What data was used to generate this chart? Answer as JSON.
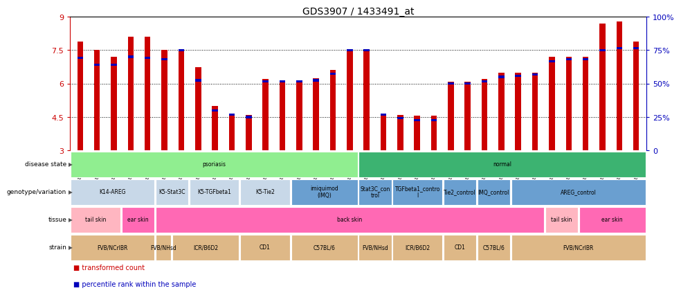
{
  "title": "GDS3907 / 1433491_at",
  "samples": [
    "GSM684694",
    "GSM684695",
    "GSM684696",
    "GSM684688",
    "GSM684689",
    "GSM684690",
    "GSM684700",
    "GSM684701",
    "GSM684704",
    "GSM684705",
    "GSM684706",
    "GSM684676",
    "GSM684677",
    "GSM684678",
    "GSM684682",
    "GSM684683",
    "GSM684684",
    "GSM684702",
    "GSM684703",
    "GSM684707",
    "GSM684708",
    "GSM684709",
    "GSM684679",
    "GSM684680",
    "GSM684681",
    "GSM684685",
    "GSM684686",
    "GSM684687",
    "GSM684697",
    "GSM684698",
    "GSM684699",
    "GSM684691",
    "GSM684692",
    "GSM684693"
  ],
  "red_values": [
    7.9,
    7.5,
    7.2,
    8.1,
    8.1,
    7.5,
    7.55,
    6.75,
    5.0,
    4.65,
    4.6,
    6.2,
    6.15,
    6.15,
    6.25,
    6.6,
    7.55,
    7.5,
    4.65,
    4.6,
    4.55,
    4.55,
    6.1,
    6.1,
    6.2,
    6.5,
    6.5,
    6.5,
    7.2,
    7.2,
    7.2,
    8.7,
    8.8,
    7.9
  ],
  "blue_values": [
    7.15,
    6.85,
    6.85,
    7.2,
    7.15,
    7.1,
    7.5,
    6.15,
    4.8,
    4.6,
    4.5,
    6.1,
    6.1,
    6.1,
    6.15,
    6.45,
    7.5,
    7.5,
    4.6,
    4.45,
    4.35,
    4.35,
    6.0,
    6.0,
    6.1,
    6.3,
    6.35,
    6.4,
    7.0,
    7.1,
    7.1,
    7.5,
    7.6,
    7.6
  ],
  "ylim": [
    3,
    9
  ],
  "yticks": [
    3,
    4.5,
    6,
    7.5,
    9
  ],
  "right_ylabels": [
    "0",
    "25%",
    "50%",
    "75%",
    "100%"
  ],
  "gridlines": [
    4.5,
    6.0,
    7.5
  ],
  "bar_color": "#CC0000",
  "blue_color": "#0000BB",
  "axis_color_left": "#CC0000",
  "axis_color_right": "#0000BB",
  "annotation_rows": [
    {
      "label": "disease state",
      "segments": [
        {
          "start": 0,
          "end": 17,
          "text": "psoriasis",
          "color": "#90EE90"
        },
        {
          "start": 17,
          "end": 34,
          "text": "normal",
          "color": "#3CB371"
        }
      ]
    },
    {
      "label": "genotype/variation",
      "segments": [
        {
          "start": 0,
          "end": 5,
          "text": "K14-AREG",
          "color": "#C8D8E8"
        },
        {
          "start": 5,
          "end": 7,
          "text": "K5-Stat3C",
          "color": "#C8D8E8"
        },
        {
          "start": 7,
          "end": 10,
          "text": "K5-TGFbeta1",
          "color": "#C8D8E8"
        },
        {
          "start": 10,
          "end": 13,
          "text": "K5-Tie2",
          "color": "#C8D8E8"
        },
        {
          "start": 13,
          "end": 17,
          "text": "imiquimod\n(IMQ)",
          "color": "#6A9FD0"
        },
        {
          "start": 17,
          "end": 19,
          "text": "Stat3C_con\ntrol",
          "color": "#6A9FD0"
        },
        {
          "start": 19,
          "end": 22,
          "text": "TGFbeta1_contro\nl",
          "color": "#6A9FD0"
        },
        {
          "start": 22,
          "end": 24,
          "text": "Tie2_control",
          "color": "#6A9FD0"
        },
        {
          "start": 24,
          "end": 26,
          "text": "IMQ_control",
          "color": "#6A9FD0"
        },
        {
          "start": 26,
          "end": 34,
          "text": "AREG_control",
          "color": "#6A9FD0"
        }
      ]
    },
    {
      "label": "tissue",
      "segments": [
        {
          "start": 0,
          "end": 3,
          "text": "tail skin",
          "color": "#FFB6C1"
        },
        {
          "start": 3,
          "end": 5,
          "text": "ear skin",
          "color": "#FF69B4"
        },
        {
          "start": 5,
          "end": 28,
          "text": "back skin",
          "color": "#FF69B4"
        },
        {
          "start": 28,
          "end": 30,
          "text": "tail skin",
          "color": "#FFB6C1"
        },
        {
          "start": 30,
          "end": 34,
          "text": "ear skin",
          "color": "#FF69B4"
        }
      ]
    },
    {
      "label": "strain",
      "segments": [
        {
          "start": 0,
          "end": 5,
          "text": "FVB/NCrIBR",
          "color": "#DEB887"
        },
        {
          "start": 5,
          "end": 6,
          "text": "FVB/NHsd",
          "color": "#DEB887"
        },
        {
          "start": 6,
          "end": 10,
          "text": "ICR/B6D2",
          "color": "#DEB887"
        },
        {
          "start": 10,
          "end": 13,
          "text": "CD1",
          "color": "#DEB887"
        },
        {
          "start": 13,
          "end": 17,
          "text": "C57BL/6",
          "color": "#DEB887"
        },
        {
          "start": 17,
          "end": 19,
          "text": "FVB/NHsd",
          "color": "#DEB887"
        },
        {
          "start": 19,
          "end": 22,
          "text": "ICR/B6D2",
          "color": "#DEB887"
        },
        {
          "start": 22,
          "end": 24,
          "text": "CD1",
          "color": "#DEB887"
        },
        {
          "start": 24,
          "end": 26,
          "text": "C57BL/6",
          "color": "#DEB887"
        },
        {
          "start": 26,
          "end": 34,
          "text": "FVB/NCrIBR",
          "color": "#DEB887"
        }
      ]
    }
  ],
  "legend_items": [
    {
      "color": "#CC0000",
      "label": "transformed count"
    },
    {
      "color": "#0000BB",
      "label": "percentile rank within the sample"
    }
  ]
}
